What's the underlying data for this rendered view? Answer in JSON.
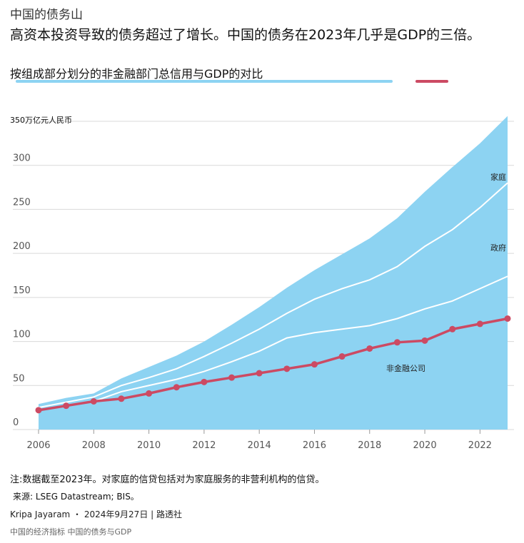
{
  "header": {
    "kicker": "中国的债务山",
    "headline": "高资本投资导致的债务超过了增长。中国的债务在2023年几乎是GDP的三倍。",
    "subtitle": "按组成部分划分的非金融部门总信用与GDP的对比"
  },
  "colors": {
    "area": "#8dd3f2",
    "boundary": "#ffffff",
    "gdp_line": "#cc4a63",
    "grid": "#d9d9d9",
    "legend_blue": "#8dd3f2",
    "legend_red": "#cc4a63"
  },
  "chart_data": {
    "type": "area",
    "unit_label": "350万亿元人民币",
    "x": [
      2006,
      2007,
      2008,
      2009,
      2010,
      2011,
      2012,
      2013,
      2014,
      2015,
      2016,
      2017,
      2018,
      2019,
      2020,
      2021,
      2022,
      2023
    ],
    "x_ticks": [
      "2006",
      "2008",
      "2010",
      "2012",
      "2014",
      "2016",
      "2018",
      "2020",
      "2022"
    ],
    "y_ticks": [
      "0",
      "50",
      "100",
      "150",
      "200",
      "250",
      "300"
    ],
    "ylim": [
      0,
      350
    ],
    "grid": true,
    "series": [
      {
        "name": "非金融公司",
        "kind": "area-segment",
        "cumulative": [
          22,
          27,
          32,
          43,
          50,
          57,
          66,
          77,
          89,
          104,
          110,
          114,
          118,
          126,
          137,
          146,
          160,
          174
        ]
      },
      {
        "name": "政府",
        "kind": "area-segment",
        "cumulative": [
          25,
          31,
          37,
          50,
          59,
          69,
          83,
          98,
          114,
          132,
          148,
          160,
          170,
          185,
          208,
          227,
          252,
          280
        ]
      },
      {
        "name": "家庭",
        "kind": "area-segment",
        "cumulative": [
          29,
          36,
          41,
          58,
          71,
          84,
          100,
          119,
          139,
          161,
          181,
          199,
          217,
          240,
          270,
          298,
          325,
          356
        ]
      },
      {
        "name": "GDP",
        "kind": "line",
        "values": [
          22,
          27,
          32,
          35,
          41,
          48,
          54,
          59,
          64,
          69,
          74,
          83,
          92,
          99,
          101,
          114,
          120,
          126
        ]
      }
    ]
  },
  "footer": {
    "note": "注:数据截至2023年。对家庭的信贷包括对为家庭服务的非营利机构的信贷。",
    "source": "来源: LSEG Datastream; BIS。",
    "byline": "Kripa Jayaram ・ 2024年9月27日 | 路透社",
    "links": "中国的经济指标 中国的债务与GDP"
  }
}
